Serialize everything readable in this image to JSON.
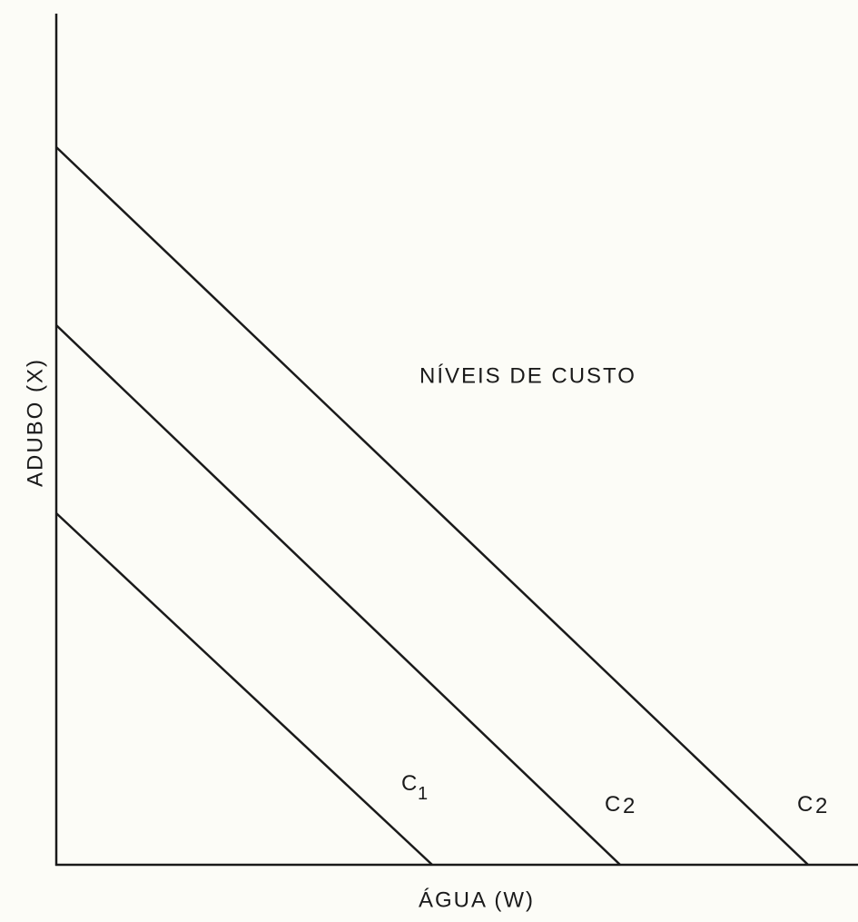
{
  "axes": {
    "y_label": "ADUBO (X)",
    "x_label": "ÁGUA (W)"
  },
  "title": "NÍVEIS DE CUSTO",
  "lines": [
    {
      "letter": "C",
      "index": "1"
    },
    {
      "letter": "C",
      "index": "2"
    },
    {
      "letter": "C",
      "index": "2"
    }
  ]
}
